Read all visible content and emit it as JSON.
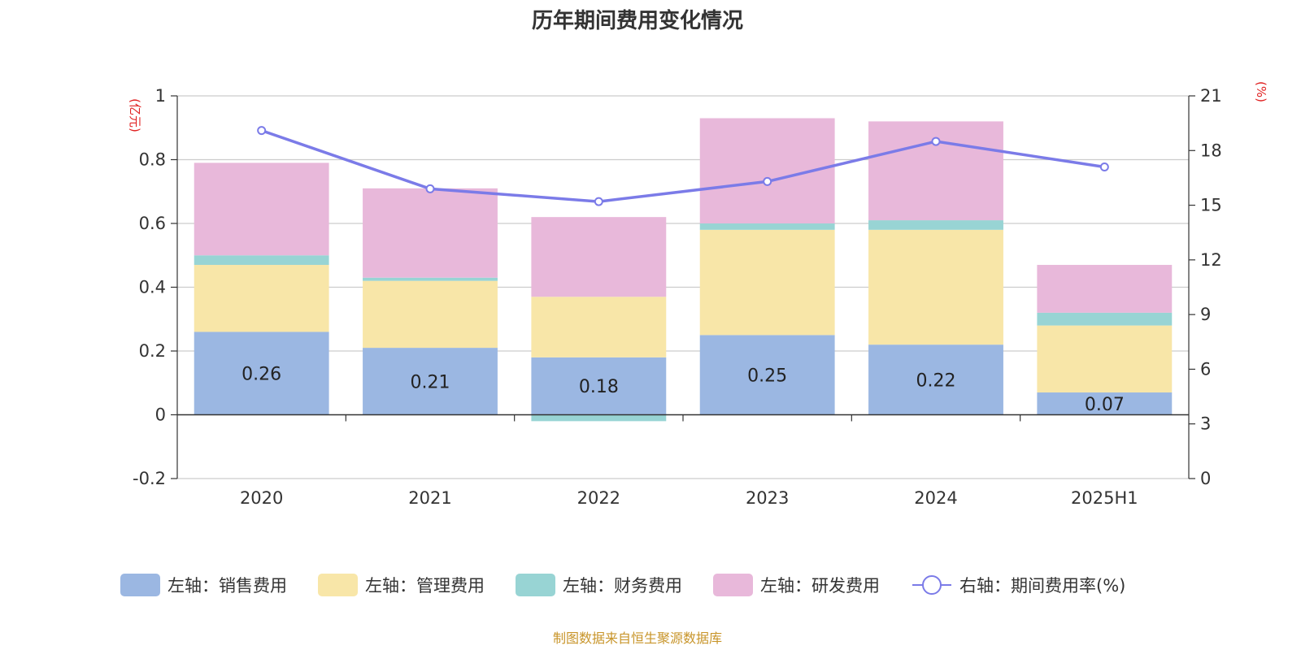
{
  "chart_data": {
    "type": "bar",
    "title": "历年期间费用变化情况",
    "categories": [
      "2020",
      "2021",
      "2022",
      "2023",
      "2024",
      "2025H1"
    ],
    "left_axis": {
      "unit": "(亿元)",
      "ylim": [
        -0.2,
        1
      ],
      "ticks": [
        -0.2,
        0,
        0.2,
        0.4,
        0.6,
        0.8,
        1
      ]
    },
    "right_axis": {
      "unit": "(%)",
      "ylim": [
        0,
        21
      ],
      "ticks": [
        0,
        3,
        6,
        9,
        12,
        15,
        18,
        21
      ]
    },
    "series": [
      {
        "name": "左轴：销售费用",
        "axis": "left",
        "type": "bar",
        "color": "#9bb7e2",
        "values": [
          0.26,
          0.21,
          0.18,
          0.25,
          0.22,
          0.07
        ],
        "labels": [
          "0.26",
          "0.21",
          "0.18",
          "0.25",
          "0.22",
          "0.07"
        ]
      },
      {
        "name": "左轴：管理费用",
        "axis": "left",
        "type": "bar",
        "color": "#f8e6a8",
        "values": [
          0.21,
          0.21,
          0.19,
          0.33,
          0.36,
          0.21
        ]
      },
      {
        "name": "左轴：财务费用",
        "axis": "left",
        "type": "bar",
        "color": "#98d4d4",
        "values": [
          0.03,
          0.01,
          -0.02,
          0.02,
          0.03,
          0.04
        ]
      },
      {
        "name": "左轴：研发费用",
        "axis": "left",
        "type": "bar",
        "color": "#e8b8da",
        "values": [
          0.29,
          0.28,
          0.25,
          0.33,
          0.31,
          0.15
        ]
      },
      {
        "name": "右轴：期间费用率(%)",
        "axis": "right",
        "type": "line",
        "color": "#7b7be8",
        "values": [
          19.1,
          15.9,
          15.2,
          16.3,
          18.5,
          17.1
        ]
      }
    ],
    "grid": true,
    "legend_position": "bottom"
  },
  "footer": {
    "source": "制图数据来自恒生聚源数据库"
  }
}
